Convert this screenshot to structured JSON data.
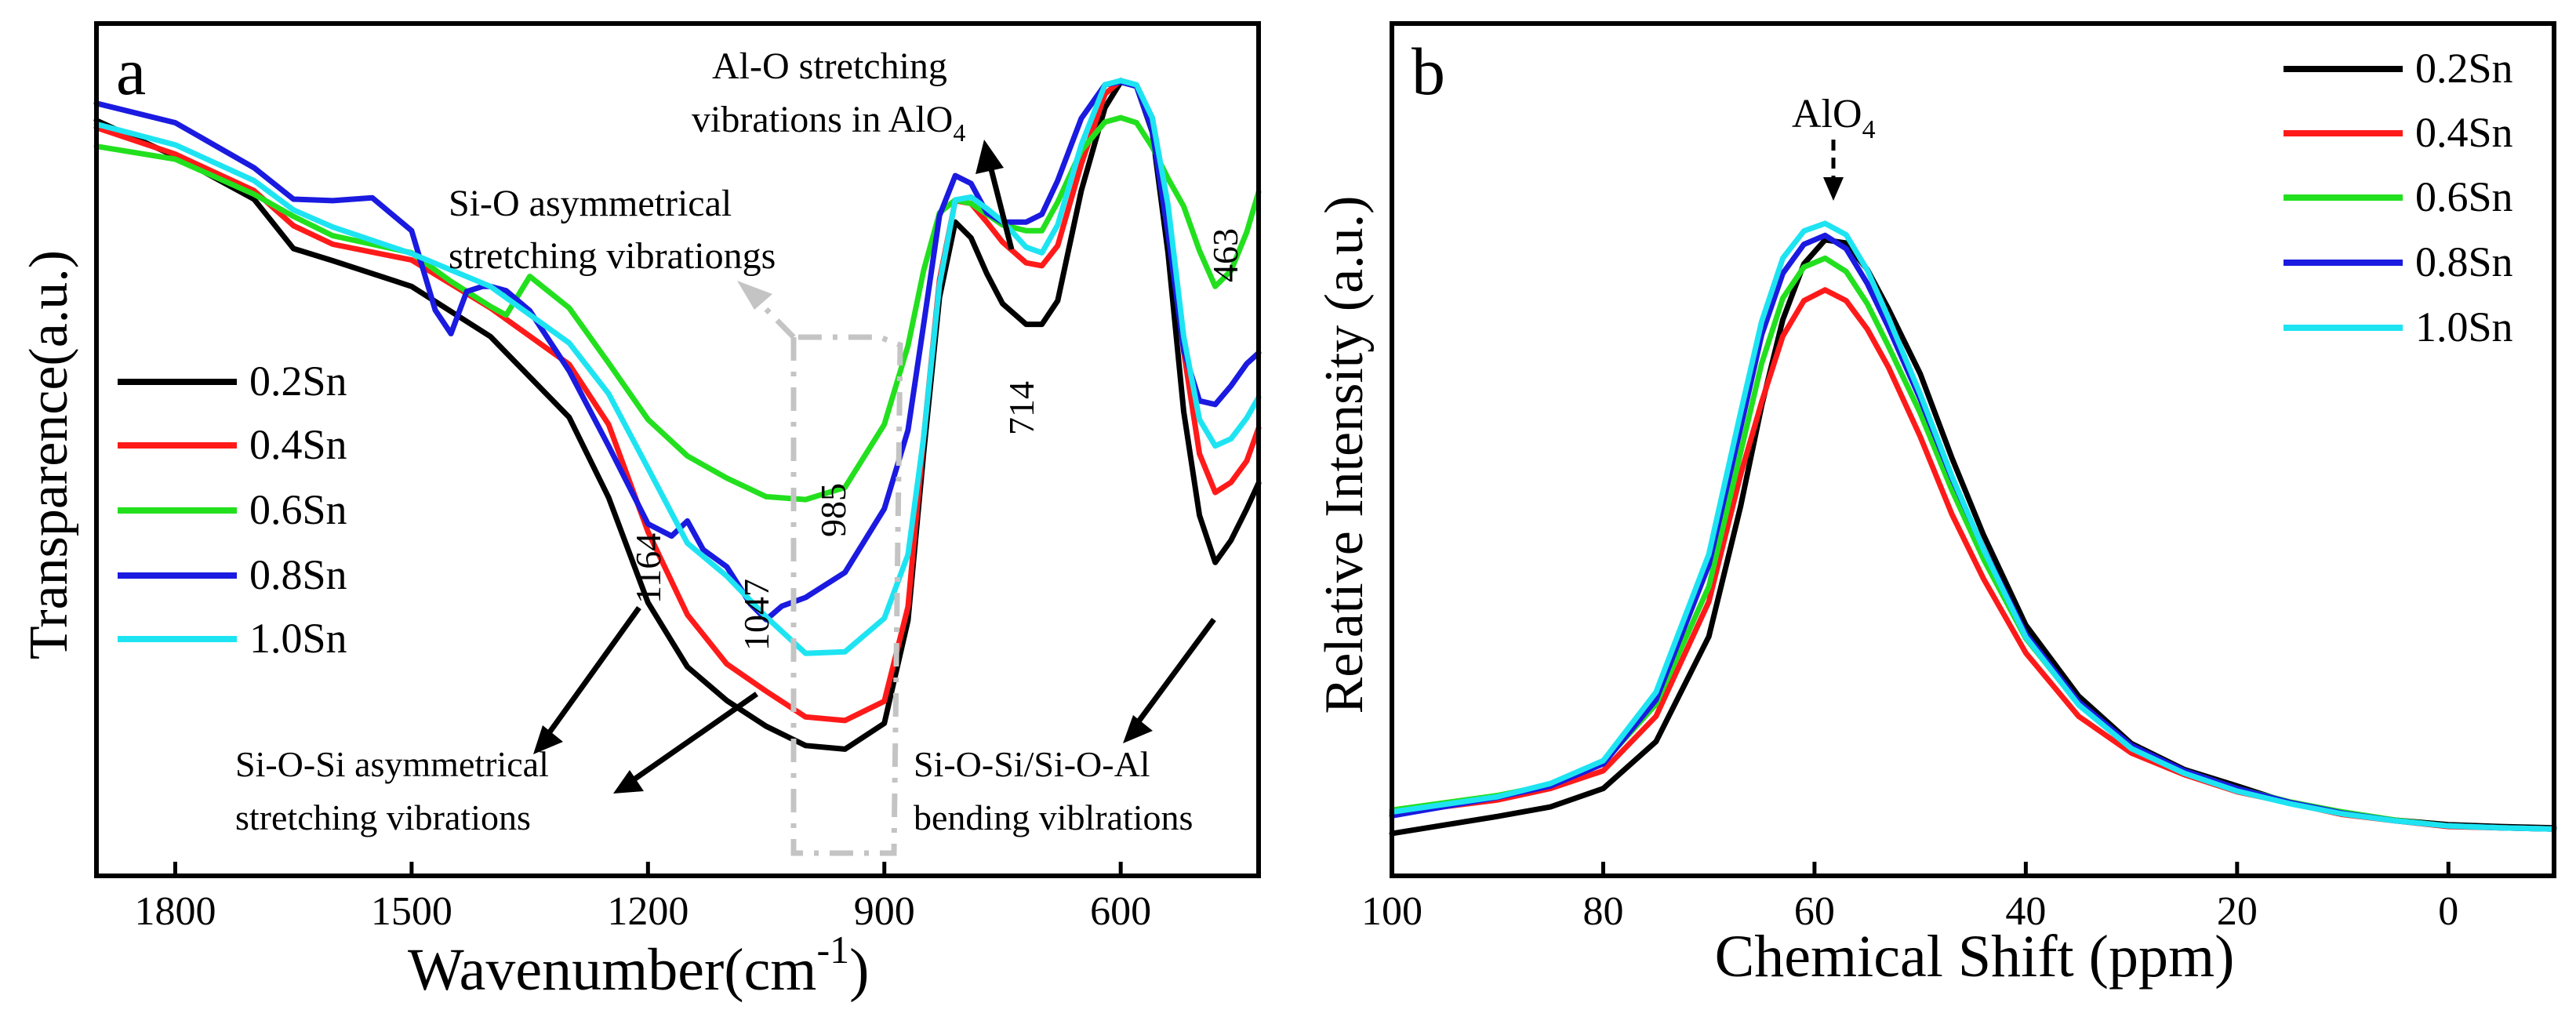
{
  "colors": {
    "s02": "#000000",
    "s04": "#ff1a1a",
    "s06": "#22e01e",
    "s08": "#1a1ae0",
    "s10": "#1ee4f2",
    "frame": "#000000",
    "box": "#c4c4c4"
  },
  "chart_data": [
    {
      "panel": "a",
      "type": "line",
      "xlabel": "Wavenumber(cm",
      "xlabel_sup": "-1",
      "xlabel_close": ")",
      "ylabel": "Transparence(a.u.)",
      "xlim": [
        1900,
        425
      ],
      "ylim": [
        0,
        100
      ],
      "x_reversed": true,
      "xticks": [
        1800,
        1500,
        1200,
        900,
        600
      ],
      "legend": {
        "placement": "middle-left",
        "entries": [
          "0.2Sn",
          "0.4Sn",
          "0.6Sn",
          "0.8Sn",
          "1.0Sn"
        ]
      },
      "series": [
        {
          "name": "0.2Sn",
          "color_key": "s02",
          "x": [
            1900,
            1800,
            1700,
            1650,
            1600,
            1500,
            1400,
            1300,
            1250,
            1200,
            1150,
            1100,
            1050,
            1000,
            950,
            900,
            870,
            850,
            830,
            810,
            790,
            770,
            750,
            720,
            700,
            680,
            650,
            620,
            600,
            580,
            560,
            540,
            520,
            500,
            480,
            460,
            440,
            425
          ],
          "y": [
            90.6,
            85.6,
            79.6,
            72.7,
            71.0,
            67.4,
            60.4,
            49.1,
            37.9,
            23.2,
            14.2,
            9.5,
            5.9,
            3.2,
            2.7,
            6.3,
            20.7,
            44.3,
            65.9,
            76.4,
            74.2,
            69.2,
            65.0,
            62.1,
            62.1,
            65.4,
            80.8,
            92.4,
            96.0,
            95.4,
            89.0,
            72.1,
            49.9,
            35.4,
            28.8,
            31.9,
            36.3,
            39.9
          ]
        },
        {
          "name": "0.4Sn",
          "color_key": "s04",
          "x": [
            1900,
            1800,
            1700,
            1650,
            1600,
            1500,
            1400,
            1300,
            1250,
            1200,
            1150,
            1100,
            1050,
            1000,
            950,
            900,
            870,
            850,
            830,
            810,
            790,
            770,
            750,
            720,
            700,
            680,
            650,
            620,
            600,
            580,
            560,
            540,
            520,
            500,
            480,
            460,
            440,
            425
          ],
          "y": [
            89.6,
            85.9,
            80.8,
            75.9,
            73.3,
            71.1,
            64.4,
            56.5,
            48.1,
            33.1,
            21.5,
            14.6,
            10.8,
            7.2,
            6.7,
            9.4,
            22.6,
            46.4,
            68.3,
            79.4,
            79.0,
            76.4,
            73.6,
            70.7,
            70.3,
            73.1,
            84.5,
            94.3,
            96.2,
            95.4,
            91.0,
            78.6,
            58.3,
            44.0,
            38.6,
            40.0,
            43.0,
            47.6
          ]
        },
        {
          "name": "0.6Sn",
          "color_key": "s06",
          "x": [
            1900,
            1800,
            1700,
            1650,
            1600,
            1500,
            1450,
            1400,
            1380,
            1350,
            1300,
            1250,
            1200,
            1150,
            1100,
            1050,
            1000,
            950,
            900,
            870,
            850,
            830,
            810,
            790,
            770,
            750,
            720,
            700,
            680,
            650,
            620,
            600,
            580,
            560,
            540,
            520,
            500,
            480,
            460,
            440,
            425
          ],
          "y": [
            87.0,
            85.2,
            80.3,
            77.2,
            74.5,
            72.1,
            68.1,
            64.6,
            63.4,
            68.8,
            64.4,
            56.7,
            48.8,
            43.7,
            40.6,
            38.0,
            37.6,
            39.3,
            48.1,
            59.1,
            69.7,
            77.7,
            79.5,
            79.0,
            77.5,
            76.0,
            75.2,
            75.2,
            79.2,
            86.4,
            90.4,
            91.0,
            90.3,
            86.9,
            82.5,
            78.6,
            72.4,
            67.4,
            69.6,
            75.0,
            80.6
          ]
        },
        {
          "name": "0.8Sn",
          "color_key": "s08",
          "x": [
            1900,
            1800,
            1700,
            1650,
            1600,
            1550,
            1500,
            1470,
            1450,
            1430,
            1410,
            1400,
            1380,
            1350,
            1300,
            1250,
            1200,
            1170,
            1150,
            1130,
            1100,
            1070,
            1050,
            1030,
            1000,
            950,
            900,
            870,
            850,
            830,
            810,
            790,
            770,
            750,
            720,
            700,
            680,
            650,
            620,
            600,
            580,
            560,
            540,
            520,
            500,
            480,
            460,
            440,
            425
          ],
          "y": [
            93.0,
            90.3,
            84.0,
            79.6,
            79.4,
            79.8,
            75.2,
            64.1,
            60.8,
            66.7,
            67.4,
            67.4,
            66.8,
            64.0,
            55.6,
            45.1,
            34.2,
            32.5,
            34.6,
            30.6,
            28.2,
            23.0,
            20.8,
            22.7,
            23.9,
            27.4,
            36.3,
            47.3,
            62.2,
            77.3,
            82.9,
            81.8,
            77.7,
            76.4,
            76.4,
            77.5,
            82.2,
            90.9,
            95.6,
            96.0,
            95.4,
            89.2,
            74.8,
            58.5,
            51.4,
            50.9,
            53.5,
            56.6,
            58.1
          ]
        },
        {
          "name": "1.0Sn",
          "color_key": "s10",
          "x": [
            1900,
            1800,
            1700,
            1650,
            1600,
            1500,
            1400,
            1300,
            1250,
            1200,
            1150,
            1100,
            1050,
            1000,
            950,
            900,
            870,
            850,
            830,
            810,
            790,
            770,
            750,
            720,
            700,
            680,
            650,
            620,
            600,
            580,
            560,
            540,
            520,
            500,
            480,
            460,
            440,
            425
          ],
          "y": [
            90.1,
            87.2,
            82.2,
            78.1,
            75.7,
            72.0,
            67.4,
            59.5,
            52.4,
            42.0,
            31.5,
            26.9,
            21.2,
            16.1,
            16.3,
            21.0,
            29.9,
            46.4,
            67.7,
            79.5,
            79.9,
            78.3,
            76.5,
            72.9,
            72.1,
            76.0,
            87.2,
            95.6,
            96.2,
            95.6,
            91.0,
            78.8,
            60.4,
            48.8,
            45.1,
            46.1,
            49.0,
            51.9
          ]
        }
      ],
      "annotations": {
        "panel_label": "a",
        "peak_1164": "1164",
        "peak_1047": "1047",
        "peak_985": "985",
        "peak_714": "714",
        "peak_463": "463",
        "alo_line1": "Al-O stretching",
        "alo_line2": "vibrations in AlO",
        "alo_sub": "4",
        "sio_line1": "Si-O asymmetrical",
        "sio_line2": "stretching vibrationgs",
        "sios_line1": "Si-O-Si asymmetrical",
        "sios_line2": "stretching vibrations",
        "bend_line1": "Si-O-Si/Si-O-Al",
        "bend_line2": "bending viblrations"
      }
    },
    {
      "panel": "b",
      "type": "line",
      "xlabel": "Chemical Shift (ppm)",
      "ylabel": "Relative Intensity (a.u.)",
      "xlim": [
        100,
        -10
      ],
      "ylim": [
        0,
        100
      ],
      "x_reversed": true,
      "xticks": [
        100,
        80,
        60,
        40,
        20,
        0
      ],
      "legend": {
        "placement": "top-right",
        "entries": [
          "0.2Sn",
          "0.4Sn",
          "0.6Sn",
          "0.8Sn",
          "1.0Sn"
        ]
      },
      "series": [
        {
          "name": "0.2Sn",
          "color_key": "s02",
          "x": [
            100,
            90,
            85,
            80,
            75,
            70,
            67,
            65,
            63,
            61,
            59,
            57,
            55,
            53,
            50,
            47,
            44,
            40,
            35,
            30,
            25,
            20,
            15,
            10,
            5,
            0,
            -5,
            -10
          ],
          "y": [
            0.0,
            2.7,
            4.2,
            7.1,
            14.5,
            31.1,
            51.6,
            67.5,
            81.1,
            89.9,
            93.7,
            93.2,
            89.0,
            82.8,
            72.6,
            59.3,
            47.1,
            32.9,
            21.7,
            14.2,
            10.1,
            7.5,
            4.8,
            3.2,
            2.1,
            1.4,
            1.1,
            0.9
          ]
        },
        {
          "name": "0.4Sn",
          "color_key": "s04",
          "x": [
            100,
            90,
            85,
            80,
            75,
            70,
            67,
            65,
            63,
            61,
            59,
            57,
            55,
            53,
            50,
            47,
            44,
            40,
            35,
            30,
            25,
            20,
            15,
            10,
            5,
            0,
            -5,
            -10
          ],
          "y": [
            3.2,
            5.3,
            7.1,
            9.9,
            18.5,
            36.6,
            56.6,
            68.1,
            78.5,
            84.1,
            85.8,
            84.1,
            79.6,
            73.6,
            62.7,
            50.4,
            40.2,
            28.5,
            18.5,
            12.7,
            9.3,
            6.6,
            4.8,
            3.0,
            2.0,
            1.1,
            0.9,
            0.7
          ]
        },
        {
          "name": "0.6Sn",
          "color_key": "s06",
          "x": [
            100,
            90,
            85,
            80,
            75,
            70,
            67,
            65,
            63,
            61,
            59,
            57,
            55,
            53,
            50,
            47,
            44,
            40,
            35,
            30,
            25,
            20,
            15,
            10,
            5,
            0,
            -5,
            -10
          ],
          "y": [
            3.7,
            6.0,
            7.7,
            11.2,
            20.4,
            39.0,
            60.1,
            74.2,
            84.5,
            89.4,
            90.8,
            88.7,
            83.6,
            76.9,
            66.4,
            54.2,
            43.3,
            30.8,
            20.4,
            13.7,
            9.9,
            7.1,
            5.0,
            3.4,
            2.1,
            1.2,
            0.9,
            0.7
          ]
        },
        {
          "name": "0.8Sn",
          "color_key": "s08",
          "x": [
            100,
            90,
            85,
            80,
            75,
            70,
            67,
            65,
            63,
            61,
            59,
            57,
            55,
            53,
            50,
            47,
            44,
            40,
            35,
            30,
            25,
            20,
            15,
            10,
            5,
            0,
            -5,
            -10
          ],
          "y": [
            2.8,
            5.7,
            7.5,
            11.0,
            21.1,
            42.4,
            64.0,
            78.7,
            88.4,
            93.0,
            94.4,
            92.3,
            86.8,
            79.9,
            68.6,
            56.1,
            44.9,
            31.5,
            20.8,
            13.9,
            9.9,
            7.1,
            4.9,
            3.2,
            2.0,
            1.2,
            0.9,
            0.7
          ]
        },
        {
          "name": "1.0Sn",
          "color_key": "s10",
          "x": [
            100,
            90,
            85,
            80,
            75,
            70,
            67,
            65,
            63,
            61,
            59,
            57,
            55,
            53,
            50,
            47,
            44,
            40,
            35,
            30,
            25,
            20,
            15,
            10,
            5,
            0,
            -5,
            -10
          ],
          "y": [
            3.4,
            5.8,
            7.9,
            11.5,
            22.3,
            44.1,
            66.4,
            80.8,
            90.8,
            95.1,
            96.3,
            94.5,
            88.9,
            81.4,
            69.4,
            56.4,
            44.8,
            31.0,
            20.3,
            13.4,
            9.5,
            6.7,
            4.7,
            3.1,
            2.0,
            1.2,
            0.9,
            0.7
          ]
        }
      ],
      "annotations": {
        "panel_label": "b",
        "peak_label": "AlO",
        "peak_label_sub": "4"
      }
    }
  ]
}
